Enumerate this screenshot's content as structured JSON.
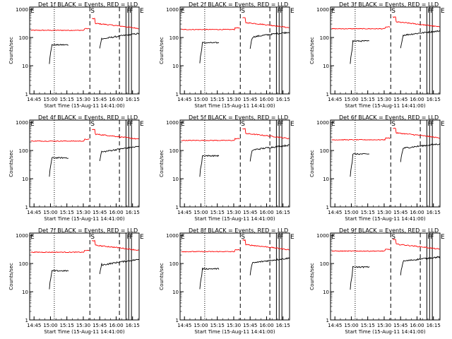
{
  "colors": {
    "events": "#000000",
    "lld": "#ff0000",
    "axis": "#000000",
    "background": "#ffffff"
  },
  "chart_data": [
    {
      "type": "line",
      "title": "Det 1f BLACK = Events, RED = LLD",
      "det": "1f"
    },
    {
      "type": "line",
      "title": "Det 2f BLACK = Events, RED = LLD",
      "det": "2f"
    },
    {
      "type": "line",
      "title": "Det 3f BLACK = Events, RED = LLD",
      "det": "3f"
    },
    {
      "type": "line",
      "title": "Det 4f BLACK = Events, RED = LLD",
      "det": "4f"
    },
    {
      "type": "line",
      "title": "Det 5f BLACK = Events, RED = LLD",
      "det": "5f"
    },
    {
      "type": "line",
      "title": "Det 6f BLACK = Events, RED = LLD",
      "det": "6f"
    },
    {
      "type": "line",
      "title": "Det 7f BLACK = Events, RED = LLD",
      "det": "7f"
    },
    {
      "type": "line",
      "title": "Det 8f BLACK = Events, RED = LLD",
      "det": "8f"
    },
    {
      "type": "line",
      "title": "Det 9f BLACK = Events, RED = LLD",
      "det": "9f"
    }
  ],
  "shared_axes": {
    "xlabel": "Start Time (15-Aug-11 14:41:00)",
    "ylabel": "Counts/sec",
    "x_ticks": [
      "14:45",
      "15:00",
      "15:15",
      "15:30",
      "15:45",
      "16:00",
      "16:15"
    ],
    "x_tick_minutes": [
      4,
      19,
      34,
      49,
      64,
      79,
      94
    ],
    "x_range_minutes": [
      0,
      100
    ],
    "y_scale": "log",
    "ylim": [
      1,
      1200
    ],
    "y_ticks": [
      "1",
      "10",
      "100",
      "1000"
    ],
    "y_tick_values": [
      1,
      10,
      100,
      1000
    ]
  },
  "markers": [
    {
      "label": "E",
      "minutes": 0,
      "style": "solid"
    },
    {
      "label": "",
      "minutes": 22.5,
      "style": "dotted"
    },
    {
      "label": "S",
      "minutes": 55,
      "style": "dashed"
    },
    {
      "label": "",
      "minutes": 82,
      "style": "dashed"
    },
    {
      "label": "F",
      "minutes": 88,
      "style": "solid"
    },
    {
      "label": "F",
      "minutes": 90.5,
      "style": "solid"
    },
    {
      "label": "",
      "minutes": 93,
      "style": "solid"
    },
    {
      "label": "E",
      "minutes": 100,
      "style": "solid"
    }
  ]
}
